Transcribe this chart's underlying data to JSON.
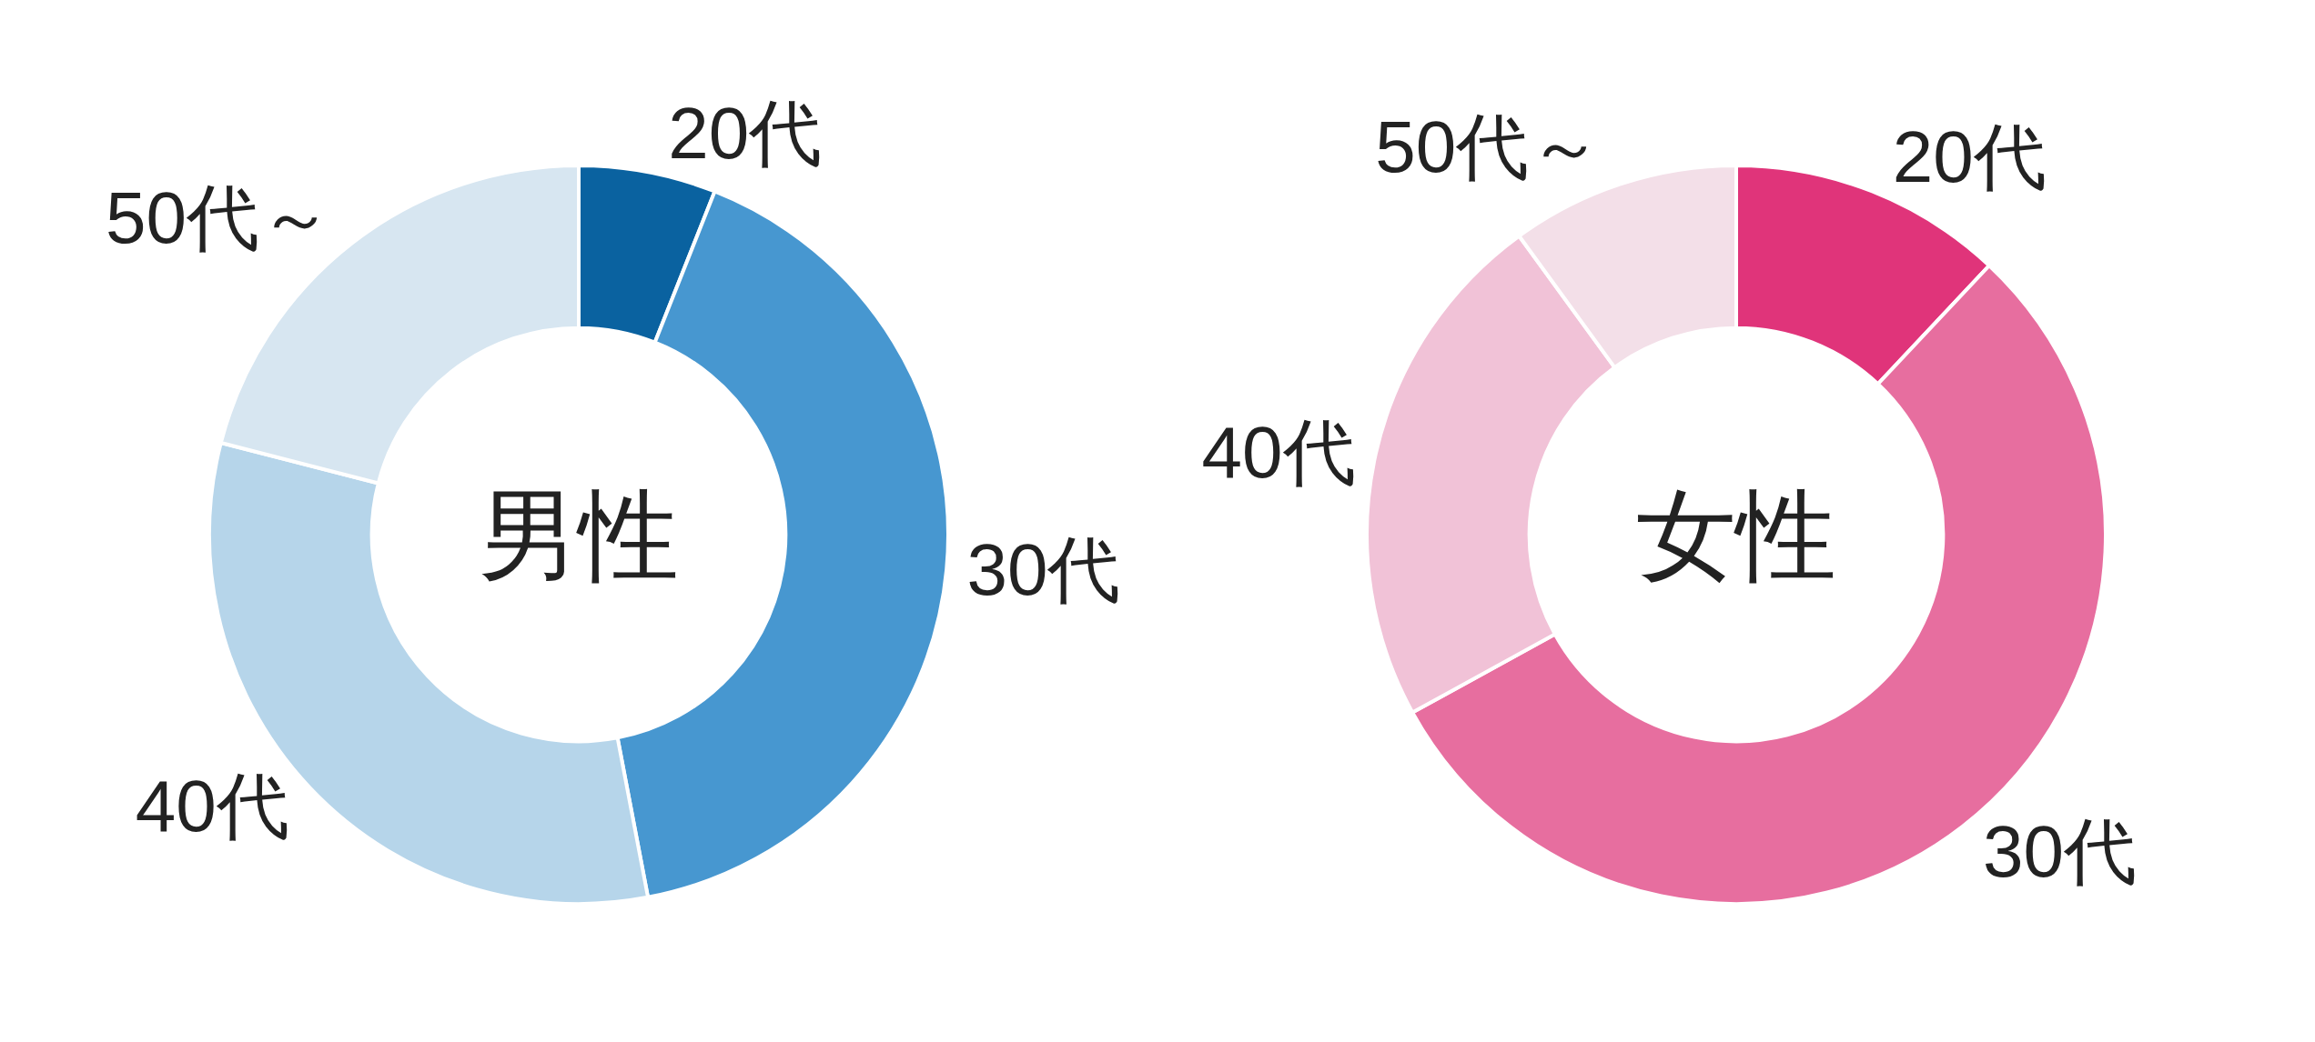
{
  "chart_data": [
    {
      "type": "donut",
      "title": "男性",
      "categories": [
        "20代",
        "30代",
        "40代",
        "50代～"
      ],
      "values": [
        6,
        41,
        32,
        21
      ],
      "colors": [
        "#0a62a0",
        "#4797d0",
        "#b6d5ea",
        "#d7e6f1"
      ],
      "legend": false
    },
    {
      "type": "donut",
      "title": "女性",
      "categories": [
        "20代",
        "30代",
        "40代",
        "50代～"
      ],
      "values": [
        12,
        55,
        23,
        10
      ],
      "colors": [
        "#e0347a",
        "#e76e9f",
        "#f1c2d7",
        "#f3dfe8"
      ],
      "legend": false
    }
  ]
}
